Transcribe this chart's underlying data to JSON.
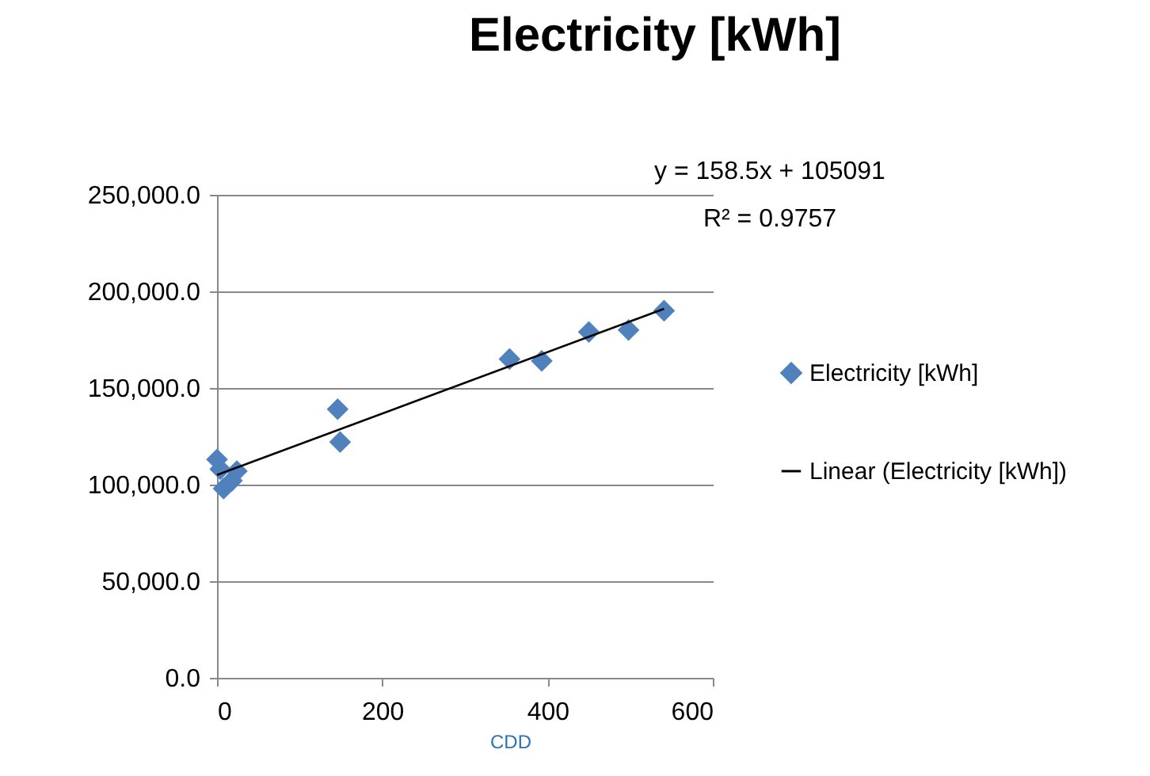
{
  "chart_data": {
    "type": "scatter",
    "title": "Electricity [kWh]",
    "xlabel": "CDD",
    "x": [
      0,
      4,
      8,
      18,
      24,
      146,
      149,
      354,
      393,
      450,
      498,
      541
    ],
    "series": [
      {
        "name": "Electricity [kWh]",
        "color": "#4f81bd",
        "marker": "diamond",
        "values": [
          113000,
          108000,
          98000,
          102000,
          107000,
          139000,
          122000,
          165000,
          164000,
          179000,
          180000,
          190000
        ]
      },
      {
        "name": "Linear (Electricity [kWh])",
        "color": "#000000",
        "type": "line",
        "x": [
          0,
          541
        ],
        "values": [
          105000,
          191000
        ]
      }
    ],
    "xlim": [
      0,
      600
    ],
    "xticks": [
      0,
      200,
      400,
      600
    ],
    "ylim": [
      0,
      250000
    ],
    "yticks": [
      {
        "value": 0,
        "label": "0.0"
      },
      {
        "value": 50000,
        "label": "50,000.0"
      },
      {
        "value": 100000,
        "label": "100,000.0"
      },
      {
        "value": 150000,
        "label": "150,000.0"
      },
      {
        "value": 200000,
        "label": "200,000.0"
      },
      {
        "value": 250000,
        "label": "250,000.0"
      }
    ],
    "grid": "y",
    "legend": "right",
    "annotations": [
      "y = 158.5x + 105091",
      "R² = 0.9757"
    ]
  }
}
